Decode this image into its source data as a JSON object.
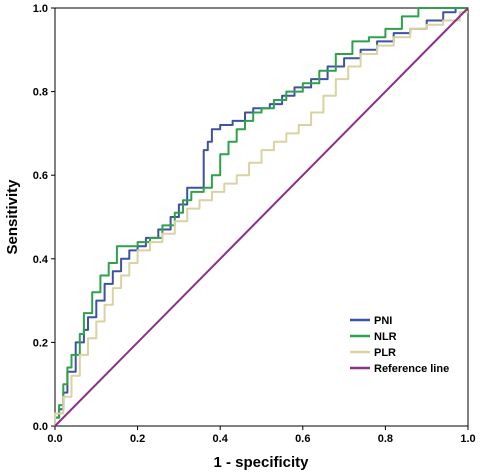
{
  "chart_data": {
    "type": "line",
    "xlabel": "1 - specificity",
    "ylabel": "Sensitivity",
    "xlim": [
      0,
      1
    ],
    "ylim": [
      0,
      1
    ],
    "x_ticks": [
      "0.0",
      "0.2",
      "0.4",
      "0.6",
      "0.8",
      "1.0"
    ],
    "y_ticks": [
      "0.0",
      "0.2",
      "0.4",
      "0.6",
      "0.8",
      "1.0"
    ],
    "grid": false,
    "legend_position": "bottom-right",
    "series": [
      {
        "name": "PNI",
        "color": "#3d52a1",
        "points": [
          [
            0,
            0
          ],
          [
            0.01,
            0.02
          ],
          [
            0.02,
            0.04
          ],
          [
            0.03,
            0.08
          ],
          [
            0.05,
            0.13
          ],
          [
            0.07,
            0.2
          ],
          [
            0.08,
            0.23
          ],
          [
            0.1,
            0.26
          ],
          [
            0.12,
            0.3
          ],
          [
            0.14,
            0.34
          ],
          [
            0.16,
            0.37
          ],
          [
            0.18,
            0.4
          ],
          [
            0.2,
            0.42
          ],
          [
            0.22,
            0.43
          ],
          [
            0.25,
            0.45
          ],
          [
            0.28,
            0.47
          ],
          [
            0.3,
            0.5
          ],
          [
            0.32,
            0.53
          ],
          [
            0.34,
            0.57
          ],
          [
            0.36,
            0.57
          ],
          [
            0.37,
            0.66
          ],
          [
            0.38,
            0.68
          ],
          [
            0.4,
            0.71
          ],
          [
            0.43,
            0.72
          ],
          [
            0.46,
            0.73
          ],
          [
            0.48,
            0.75
          ],
          [
            0.52,
            0.76
          ],
          [
            0.55,
            0.77
          ],
          [
            0.58,
            0.79
          ],
          [
            0.62,
            0.81
          ],
          [
            0.66,
            0.83
          ],
          [
            0.7,
            0.86
          ],
          [
            0.74,
            0.88
          ],
          [
            0.78,
            0.9
          ],
          [
            0.82,
            0.92
          ],
          [
            0.86,
            0.94
          ],
          [
            0.9,
            0.95
          ],
          [
            0.94,
            0.97
          ],
          [
            0.97,
            0.99
          ],
          [
            1,
            1
          ]
        ]
      },
      {
        "name": "NLR",
        "color": "#2fa14a",
        "points": [
          [
            0,
            0
          ],
          [
            0.01,
            0.02
          ],
          [
            0.02,
            0.05
          ],
          [
            0.03,
            0.1
          ],
          [
            0.04,
            0.14
          ],
          [
            0.06,
            0.17
          ],
          [
            0.07,
            0.22
          ],
          [
            0.09,
            0.27
          ],
          [
            0.11,
            0.32
          ],
          [
            0.13,
            0.36
          ],
          [
            0.15,
            0.39
          ],
          [
            0.17,
            0.43
          ],
          [
            0.2,
            0.43
          ],
          [
            0.23,
            0.44
          ],
          [
            0.26,
            0.45
          ],
          [
            0.29,
            0.48
          ],
          [
            0.31,
            0.51
          ],
          [
            0.33,
            0.54
          ],
          [
            0.36,
            0.56
          ],
          [
            0.38,
            0.57
          ],
          [
            0.4,
            0.6
          ],
          [
            0.42,
            0.65
          ],
          [
            0.44,
            0.68
          ],
          [
            0.46,
            0.71
          ],
          [
            0.48,
            0.73
          ],
          [
            0.5,
            0.75
          ],
          [
            0.53,
            0.76
          ],
          [
            0.56,
            0.78
          ],
          [
            0.6,
            0.8
          ],
          [
            0.64,
            0.82
          ],
          [
            0.68,
            0.85
          ],
          [
            0.72,
            0.89
          ],
          [
            0.76,
            0.92
          ],
          [
            0.8,
            0.93
          ],
          [
            0.84,
            0.95
          ],
          [
            0.88,
            0.98
          ],
          [
            0.92,
            1.0
          ],
          [
            1,
            1
          ]
        ]
      },
      {
        "name": "PLR",
        "color": "#d9d2a1",
        "points": [
          [
            0,
            0
          ],
          [
            0.02,
            0.03
          ],
          [
            0.04,
            0.07
          ],
          [
            0.06,
            0.12
          ],
          [
            0.08,
            0.17
          ],
          [
            0.1,
            0.21
          ],
          [
            0.12,
            0.25
          ],
          [
            0.14,
            0.29
          ],
          [
            0.16,
            0.33
          ],
          [
            0.18,
            0.36
          ],
          [
            0.2,
            0.39
          ],
          [
            0.23,
            0.42
          ],
          [
            0.26,
            0.44
          ],
          [
            0.29,
            0.46
          ],
          [
            0.32,
            0.49
          ],
          [
            0.35,
            0.52
          ],
          [
            0.38,
            0.54
          ],
          [
            0.41,
            0.56
          ],
          [
            0.44,
            0.58
          ],
          [
            0.47,
            0.6
          ],
          [
            0.5,
            0.63
          ],
          [
            0.53,
            0.66
          ],
          [
            0.56,
            0.68
          ],
          [
            0.59,
            0.7
          ],
          [
            0.62,
            0.72
          ],
          [
            0.65,
            0.75
          ],
          [
            0.68,
            0.79
          ],
          [
            0.71,
            0.83
          ],
          [
            0.74,
            0.86
          ],
          [
            0.78,
            0.89
          ],
          [
            0.82,
            0.91
          ],
          [
            0.86,
            0.93
          ],
          [
            0.9,
            0.95
          ],
          [
            0.94,
            0.96
          ],
          [
            0.98,
            0.97
          ],
          [
            1,
            0.99
          ]
        ]
      },
      {
        "name": "Reference line",
        "color": "#8b2f8b",
        "points": [
          [
            0,
            0
          ],
          [
            1,
            1
          ]
        ]
      }
    ]
  }
}
